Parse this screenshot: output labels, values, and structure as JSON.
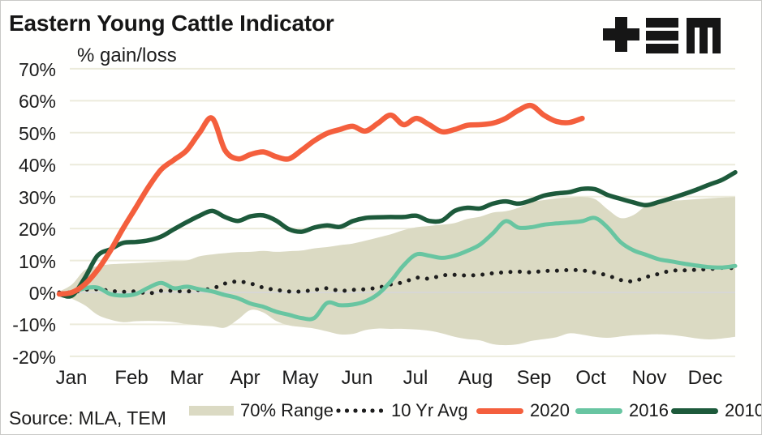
{
  "source": "Source: MLA, TEM",
  "logo": {
    "name": "TEM logo",
    "color": "#161616"
  },
  "legend": {
    "items": [
      {
        "label": "70% Range",
        "swatch": "band"
      },
      {
        "label": "10 Yr Avg",
        "swatch": "dotted"
      },
      {
        "label": "2020",
        "swatch": "line-orange"
      },
      {
        "label": "2016",
        "swatch": "line-teal"
      },
      {
        "label": "2010",
        "swatch": "line-darkgreen"
      }
    ]
  },
  "colors": {
    "background": "#fffffe",
    "gridline": "#ecebdb",
    "zero_line": "#d7d7d5",
    "text": "#161616"
  },
  "chart_data": {
    "type": "line",
    "title": "Eastern Young Cattle Indicator",
    "ylabel": "% gain/loss",
    "xlabel": "",
    "ylim": [
      -20,
      70
    ],
    "grid": "horizontal",
    "legend_position": "bottom",
    "x_unit": "weeks, Jan through Dec (54 weekly points; 2020 series ends late Sep)",
    "x_tick_labels": [
      "Jan",
      "Feb",
      "Mar",
      "Apr",
      "May",
      "Jun",
      "Jul",
      "Aug",
      "Sep",
      "Oct",
      "Nov",
      "Dec"
    ],
    "y_ticks": [
      {
        "value": 70,
        "label": "70%"
      },
      {
        "value": 60,
        "label": "60%"
      },
      {
        "value": 50,
        "label": "50%"
      },
      {
        "value": 40,
        "label": "40%"
      },
      {
        "value": 30,
        "label": "30%"
      },
      {
        "value": 20,
        "label": "20%"
      },
      {
        "value": 10,
        "label": "10%"
      },
      {
        "value": 0,
        "label": "0%"
      },
      {
        "value": -10,
        "label": "-10%"
      },
      {
        "value": -20,
        "label": "-20%"
      }
    ],
    "band": {
      "name": "70% Range",
      "color": "#dbdac3",
      "upper": [
        0.3,
        2.5,
        7,
        8.2,
        8.8,
        9,
        9.2,
        9.4,
        9.6,
        9.8,
        10,
        11.3,
        11.9,
        12.3,
        12.6,
        12.7,
        13,
        12.7,
        12.9,
        13.1,
        13.8,
        14.2,
        14.8,
        15.3,
        16.2,
        17.2,
        18.2,
        19.5,
        20.4,
        20.8,
        21.2,
        21.7,
        23,
        23.7,
        25,
        25.4,
        26.5,
        28.3,
        28.9,
        29.5,
        29.7,
        29.9,
        29.2,
        26,
        23.3,
        24.2,
        27,
        28.3,
        28.7,
        28.9,
        29.2,
        29.5,
        29.7,
        29.9
      ],
      "lower": [
        -0.5,
        -2,
        -4,
        -7,
        -8.5,
        -9.3,
        -9,
        -8.9,
        -9,
        -9.3,
        -9.9,
        -10.3,
        -10.6,
        -11,
        -8.5,
        -5.5,
        -6.3,
        -8.9,
        -10.3,
        -10.8,
        -11.3,
        -12.2,
        -13.1,
        -13,
        -11.8,
        -11.3,
        -11.4,
        -11.4,
        -11.6,
        -12,
        -12.8,
        -13.9,
        -14.6,
        -15,
        -16.2,
        -16.5,
        -16.2,
        -15.2,
        -14.6,
        -14,
        -12.8,
        -13.2,
        -13.9,
        -14.2,
        -13.8,
        -13.4,
        -13.2,
        -13.1,
        -13.3,
        -13.8,
        -14.4,
        -14.7,
        -14.4,
        -13.9
      ]
    },
    "series": [
      {
        "name": "10 Yr Avg",
        "style": "dotted",
        "color": "#1e1e1e",
        "values": [
          0,
          0,
          0.8,
          1,
          0.5,
          0.2,
          0.3,
          -0.3,
          0.5,
          0.5,
          0.3,
          0.8,
          1.2,
          2.8,
          3.4,
          2.8,
          1.5,
          0.8,
          0.3,
          0.3,
          0.8,
          1.3,
          0.5,
          0.8,
          1,
          1.5,
          2.5,
          3.2,
          4.6,
          4.3,
          5.3,
          5.5,
          5.3,
          5.5,
          6,
          6.3,
          6.5,
          6.3,
          6.7,
          6.8,
          7,
          6.9,
          6.2,
          5.3,
          3.9,
          3.5,
          4.8,
          5.8,
          6.8,
          6.9,
          7.1,
          7.3,
          7.7,
          7.6
        ]
      },
      {
        "name": "2016",
        "style": "solid",
        "color": "#68c5a1",
        "values": [
          -0.5,
          0,
          1.3,
          1.5,
          -0.5,
          -1,
          -0.5,
          1.5,
          3,
          1.3,
          1.8,
          1,
          0.3,
          -0.8,
          -1.8,
          -3.5,
          -4.5,
          -6,
          -7,
          -8,
          -8,
          -3.3,
          -4,
          -3.8,
          -2.8,
          -0.5,
          3.5,
          8.5,
          11.9,
          11.5,
          10.8,
          11.5,
          13,
          15,
          18.5,
          22.3,
          20.3,
          20.4,
          21.2,
          21.6,
          21.9,
          22.3,
          23.3,
          20.3,
          15.8,
          13.2,
          11.8,
          10.4,
          9.7,
          9,
          8.4,
          7.9,
          7.8,
          8.3
        ]
      },
      {
        "name": "2010",
        "style": "solid",
        "color": "#1d5a3b",
        "values": [
          -0.5,
          -1,
          4.5,
          11.5,
          13.5,
          15.5,
          15.8,
          16.3,
          17.5,
          19.8,
          22,
          24,
          25.5,
          23.6,
          22.4,
          23.8,
          24.1,
          22.5,
          19.8,
          19,
          20.3,
          21,
          20.5,
          22.3,
          23.3,
          23.5,
          23.6,
          23.6,
          24,
          22.4,
          22.5,
          25.5,
          26.5,
          26.3,
          27.8,
          28.5,
          27.8,
          28.8,
          30.3,
          31,
          31.4,
          32.4,
          32.3,
          30.5,
          29.3,
          28.2,
          27.3,
          28.3,
          29.5,
          30.8,
          32.2,
          33.8,
          35.3,
          37.6
        ]
      },
      {
        "name": "2020",
        "style": "solid",
        "color": "#f45f3d",
        "values": [
          -0.5,
          0,
          2.5,
          7,
          13,
          20,
          26.5,
          33,
          38.5,
          41.5,
          44.5,
          50,
          54.5,
          44.5,
          41.8,
          43.2,
          44,
          42.5,
          41.8,
          44.5,
          47.5,
          49.8,
          51,
          52,
          50.5,
          53,
          55.5,
          52.5,
          54.5,
          52.5,
          50.3,
          51,
          52.3,
          52.5,
          53,
          54.5,
          57,
          58.5,
          55.5,
          53.5,
          53.2,
          54.5
        ]
      }
    ]
  }
}
